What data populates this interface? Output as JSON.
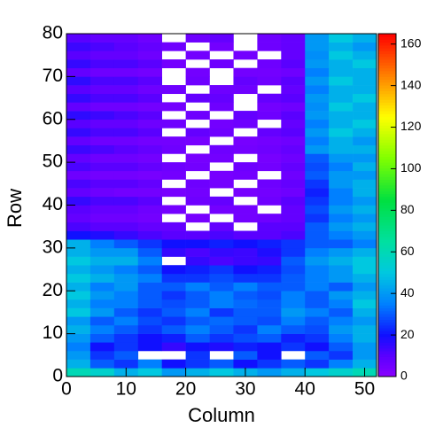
{
  "chart_data": {
    "type": "heatmap",
    "x_label": "Column",
    "y_label": "Row",
    "xlim": [
      0,
      52
    ],
    "ylim": [
      0,
      80
    ],
    "zlim": [
      0,
      165
    ],
    "xticks": [
      0,
      10,
      20,
      30,
      40,
      50
    ],
    "yticks": [
      0,
      10,
      20,
      30,
      40,
      50,
      60,
      70,
      80
    ],
    "zticks": [
      0,
      20,
      40,
      60,
      80,
      100,
      120,
      140,
      160
    ],
    "xbins": [
      0,
      4,
      8,
      12,
      16,
      20,
      24,
      28,
      32,
      36,
      40,
      44,
      48,
      52
    ],
    "ybins": [
      0,
      2,
      4,
      6,
      8,
      10,
      12,
      14,
      16,
      18,
      20,
      22,
      24,
      26,
      28,
      30,
      32,
      34,
      36,
      38,
      40,
      42,
      44,
      46,
      48,
      50,
      52,
      54,
      56,
      58,
      60,
      62,
      64,
      66,
      68,
      70,
      72,
      74,
      76,
      78,
      80
    ],
    "colorscale": [
      [
        0,
        "#8b00ff"
      ],
      [
        10,
        "#5a00ff"
      ],
      [
        20,
        "#1010ff"
      ],
      [
        35,
        "#0080ff"
      ],
      [
        50,
        "#00c8e0"
      ],
      [
        65,
        "#00e0a0"
      ],
      [
        85,
        "#00e040"
      ],
      [
        105,
        "#80ff00"
      ],
      [
        125,
        "#ffff00"
      ],
      [
        145,
        "#ff8000"
      ],
      [
        165,
        "#ff0000"
      ]
    ],
    "z": [
      [
        60,
        55,
        45,
        50,
        40,
        45,
        50,
        45,
        40,
        45,
        50,
        55,
        60
      ],
      [
        45,
        30,
        25,
        35,
        20,
        25,
        30,
        20,
        25,
        30,
        25,
        35,
        45
      ],
      [
        40,
        25,
        30,
        null,
        null,
        25,
        null,
        30,
        20,
        null,
        30,
        25,
        40
      ],
      [
        35,
        20,
        25,
        20,
        15,
        20,
        18,
        22,
        20,
        25,
        20,
        30,
        40
      ],
      [
        40,
        30,
        25,
        20,
        22,
        30,
        25,
        28,
        30,
        22,
        25,
        35,
        45
      ],
      [
        45,
        35,
        30,
        25,
        30,
        35,
        30,
        25,
        35,
        30,
        28,
        40,
        45
      ],
      [
        40,
        30,
        35,
        28,
        25,
        30,
        32,
        30,
        28,
        35,
        30,
        35,
        40
      ],
      [
        50,
        40,
        30,
        25,
        30,
        35,
        25,
        30,
        30,
        40,
        35,
        30,
        45
      ],
      [
        45,
        35,
        35,
        30,
        28,
        30,
        35,
        32,
        30,
        35,
        30,
        35,
        50
      ],
      [
        50,
        40,
        35,
        30,
        25,
        30,
        35,
        30,
        28,
        35,
        30,
        40,
        45
      ],
      [
        45,
        35,
        40,
        30,
        30,
        35,
        30,
        35,
        30,
        30,
        35,
        30,
        40
      ],
      [
        50,
        45,
        40,
        35,
        25,
        25,
        28,
        25,
        25,
        30,
        35,
        40,
        45
      ],
      [
        45,
        40,
        35,
        30,
        20,
        22,
        25,
        20,
        22,
        28,
        35,
        40,
        50
      ],
      [
        50,
        45,
        45,
        35,
        null,
        15,
        12,
        14,
        15,
        30,
        40,
        45,
        50
      ],
      [
        45,
        40,
        40,
        30,
        15,
        12,
        15,
        14,
        18,
        25,
        35,
        40,
        45
      ],
      [
        45,
        35,
        30,
        25,
        20,
        20,
        22,
        20,
        22,
        25,
        30,
        30,
        35
      ],
      [
        20,
        18,
        15,
        12,
        10,
        10,
        12,
        10,
        10,
        12,
        30,
        35,
        40
      ],
      [
        12,
        10,
        10,
        8,
        8,
        null,
        8,
        null,
        10,
        10,
        30,
        40,
        45
      ],
      [
        8,
        6,
        6,
        5,
        null,
        4,
        null,
        5,
        6,
        8,
        25,
        35,
        40
      ],
      [
        10,
        8,
        8,
        6,
        5,
        null,
        5,
        5,
        null,
        8,
        28,
        40,
        45
      ],
      [
        15,
        12,
        12,
        10,
        null,
        6,
        8,
        null,
        6,
        10,
        25,
        35,
        40
      ],
      [
        8,
        6,
        5,
        5,
        4,
        5,
        null,
        4,
        5,
        6,
        22,
        35,
        45
      ],
      [
        12,
        10,
        10,
        8,
        null,
        6,
        5,
        null,
        6,
        8,
        25,
        40,
        45
      ],
      [
        6,
        5,
        5,
        4,
        5,
        null,
        4,
        5,
        null,
        6,
        30,
        40,
        40
      ],
      [
        12,
        10,
        10,
        8,
        6,
        5,
        null,
        6,
        5,
        8,
        28,
        35,
        45
      ],
      [
        8,
        6,
        6,
        5,
        null,
        4,
        5,
        null,
        4,
        6,
        30,
        40,
        40
      ],
      [
        14,
        12,
        10,
        8,
        6,
        null,
        6,
        5,
        6,
        8,
        40,
        45,
        45
      ],
      [
        8,
        6,
        6,
        5,
        5,
        4,
        null,
        4,
        5,
        6,
        35,
        45,
        40
      ],
      [
        15,
        12,
        12,
        10,
        null,
        8,
        6,
        null,
        8,
        10,
        40,
        50,
        45
      ],
      [
        10,
        8,
        8,
        6,
        6,
        null,
        5,
        6,
        null,
        8,
        35,
        45,
        50
      ],
      [
        16,
        14,
        12,
        10,
        null,
        6,
        null,
        8,
        6,
        10,
        40,
        45,
        45
      ],
      [
        8,
        6,
        6,
        5,
        5,
        null,
        6,
        null,
        5,
        6,
        38,
        50,
        45
      ],
      [
        15,
        12,
        12,
        10,
        null,
        8,
        8,
        null,
        8,
        10,
        40,
        45,
        50
      ],
      [
        10,
        8,
        8,
        6,
        6,
        null,
        6,
        6,
        null,
        8,
        35,
        45,
        45
      ],
      [
        16,
        12,
        12,
        10,
        null,
        6,
        null,
        8,
        6,
        10,
        40,
        50,
        45
      ],
      [
        8,
        6,
        6,
        5,
        null,
        5,
        null,
        5,
        5,
        6,
        35,
        45,
        45
      ],
      [
        15,
        12,
        12,
        10,
        5,
        null,
        6,
        null,
        6,
        10,
        40,
        45,
        50
      ],
      [
        10,
        8,
        8,
        6,
        null,
        5,
        null,
        5,
        null,
        8,
        38,
        50,
        45
      ],
      [
        14,
        12,
        10,
        8,
        6,
        null,
        5,
        null,
        6,
        8,
        40,
        45,
        40
      ],
      [
        10,
        8,
        8,
        6,
        null,
        6,
        8,
        null,
        6,
        8,
        40,
        50,
        45
      ]
    ]
  }
}
